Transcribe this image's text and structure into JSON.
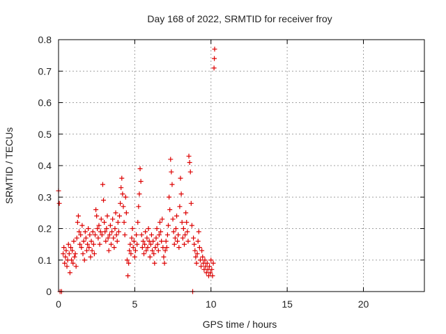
{
  "chart_data": {
    "type": "scatter",
    "title": "Day 168 of 2022, SRMTID for receiver froy",
    "xlabel": "GPS time / hours",
    "ylabel": "SRMTID / TECUs",
    "xlim": [
      0,
      24
    ],
    "ylim": [
      0,
      0.8
    ],
    "xticks": [
      0,
      5,
      10,
      15,
      20
    ],
    "xtick_labels": [
      "0",
      "5",
      "10",
      "15",
      "20"
    ],
    "yticks": [
      0,
      0.1,
      0.2,
      0.3,
      0.4,
      0.5,
      0.6,
      0.7,
      0.8
    ],
    "ytick_labels": [
      "0",
      "0.1",
      "0.2",
      "0.3",
      "0.4",
      "0.5",
      "0.6",
      "0.7",
      "0.8"
    ],
    "grid": true,
    "marker": "+",
    "marker_color": "#dd0000",
    "series": [
      {
        "name": "SRMTID",
        "points": [
          [
            0.0,
            0.32
          ],
          [
            0.05,
            0.28
          ],
          [
            0.1,
            0.0
          ],
          [
            0.2,
            0.0
          ],
          [
            0.3,
            0.12
          ],
          [
            0.35,
            0.14
          ],
          [
            0.4,
            0.09
          ],
          [
            0.45,
            0.11
          ],
          [
            0.5,
            0.13
          ],
          [
            0.55,
            0.08
          ],
          [
            0.6,
            0.1
          ],
          [
            0.65,
            0.15
          ],
          [
            0.7,
            0.12
          ],
          [
            0.75,
            0.06
          ],
          [
            0.8,
            0.14
          ],
          [
            0.85,
            0.1
          ],
          [
            0.9,
            0.13
          ],
          [
            0.95,
            0.09
          ],
          [
            1.0,
            0.16
          ],
          [
            1.05,
            0.11
          ],
          [
            1.1,
            0.12
          ],
          [
            1.15,
            0.08
          ],
          [
            1.2,
            0.17
          ],
          [
            1.25,
            0.22
          ],
          [
            1.3,
            0.24
          ],
          [
            1.35,
            0.19
          ],
          [
            1.4,
            0.15
          ],
          [
            1.45,
            0.18
          ],
          [
            1.5,
            0.14
          ],
          [
            1.55,
            0.21
          ],
          [
            1.6,
            0.12
          ],
          [
            1.65,
            0.16
          ],
          [
            1.7,
            0.1
          ],
          [
            1.75,
            0.19
          ],
          [
            1.8,
            0.17
          ],
          [
            1.85,
            0.13
          ],
          [
            1.9,
            0.15
          ],
          [
            1.95,
            0.2
          ],
          [
            2.0,
            0.14
          ],
          [
            2.05,
            0.18
          ],
          [
            2.1,
            0.11
          ],
          [
            2.15,
            0.16
          ],
          [
            2.2,
            0.13
          ],
          [
            2.25,
            0.19
          ],
          [
            2.3,
            0.15
          ],
          [
            2.35,
            0.12
          ],
          [
            2.4,
            0.18
          ],
          [
            2.45,
            0.26
          ],
          [
            2.5,
            0.24
          ],
          [
            2.55,
            0.2
          ],
          [
            2.6,
            0.17
          ],
          [
            2.65,
            0.21
          ],
          [
            2.7,
            0.15
          ],
          [
            2.75,
            0.19
          ],
          [
            2.8,
            0.23
          ],
          [
            2.85,
            0.18
          ],
          [
            2.9,
            0.34
          ],
          [
            2.95,
            0.29
          ],
          [
            3.0,
            0.22
          ],
          [
            3.05,
            0.19
          ],
          [
            3.1,
            0.16
          ],
          [
            3.15,
            0.2
          ],
          [
            3.2,
            0.24
          ],
          [
            3.25,
            0.17
          ],
          [
            3.3,
            0.13
          ],
          [
            3.35,
            0.18
          ],
          [
            3.4,
            0.21
          ],
          [
            3.45,
            0.15
          ],
          [
            3.5,
            0.19
          ],
          [
            3.55,
            0.23
          ],
          [
            3.6,
            0.17
          ],
          [
            3.65,
            0.14
          ],
          [
            3.7,
            0.2
          ],
          [
            3.75,
            0.25
          ],
          [
            3.8,
            0.18
          ],
          [
            3.85,
            0.16
          ],
          [
            3.9,
            0.22
          ],
          [
            3.95,
            0.19
          ],
          [
            4.0,
            0.24
          ],
          [
            4.05,
            0.28
          ],
          [
            4.1,
            0.33
          ],
          [
            4.15,
            0.36
          ],
          [
            4.2,
            0.31
          ],
          [
            4.25,
            0.27
          ],
          [
            4.3,
            0.22
          ],
          [
            4.35,
            0.18
          ],
          [
            4.4,
            0.3
          ],
          [
            4.45,
            0.25
          ],
          [
            4.5,
            0.1
          ],
          [
            4.55,
            0.05
          ],
          [
            4.6,
            0.09
          ],
          [
            4.65,
            0.13
          ],
          [
            4.7,
            0.15
          ],
          [
            4.75,
            0.12
          ],
          [
            4.8,
            0.17
          ],
          [
            4.85,
            0.2
          ],
          [
            4.9,
            0.14
          ],
          [
            4.95,
            0.16
          ],
          [
            5.0,
            0.11
          ],
          [
            5.05,
            0.13
          ],
          [
            5.1,
            0.18
          ],
          [
            5.15,
            0.15
          ],
          [
            5.2,
            0.22
          ],
          [
            5.25,
            0.27
          ],
          [
            5.3,
            0.31
          ],
          [
            5.35,
            0.39
          ],
          [
            5.4,
            0.35
          ],
          [
            5.45,
            0.18
          ],
          [
            5.5,
            0.14
          ],
          [
            5.55,
            0.16
          ],
          [
            5.6,
            0.12
          ],
          [
            5.65,
            0.15
          ],
          [
            5.7,
            0.19
          ],
          [
            5.75,
            0.13
          ],
          [
            5.8,
            0.17
          ],
          [
            5.85,
            0.14
          ],
          [
            5.9,
            0.2
          ],
          [
            5.95,
            0.16
          ],
          [
            6.0,
            0.11
          ],
          [
            6.05,
            0.15
          ],
          [
            6.1,
            0.18
          ],
          [
            6.15,
            0.13
          ],
          [
            6.2,
            0.16
          ],
          [
            6.25,
            0.12
          ],
          [
            6.3,
            0.09
          ],
          [
            6.35,
            0.14
          ],
          [
            6.4,
            0.17
          ],
          [
            6.45,
            0.2
          ],
          [
            6.5,
            0.15
          ],
          [
            6.55,
            0.13
          ],
          [
            6.6,
            0.18
          ],
          [
            6.65,
            0.22
          ],
          [
            6.7,
            0.19
          ],
          [
            6.75,
            0.16
          ],
          [
            6.8,
            0.23
          ],
          [
            6.85,
            0.14
          ],
          [
            6.9,
            0.11
          ],
          [
            6.95,
            0.09
          ],
          [
            7.0,
            0.13
          ],
          [
            7.05,
            0.16
          ],
          [
            7.1,
            0.14
          ],
          [
            7.15,
            0.18
          ],
          [
            7.2,
            0.21
          ],
          [
            7.25,
            0.3
          ],
          [
            7.3,
            0.26
          ],
          [
            7.35,
            0.42
          ],
          [
            7.4,
            0.38
          ],
          [
            7.45,
            0.34
          ],
          [
            7.5,
            0.23
          ],
          [
            7.55,
            0.19
          ],
          [
            7.6,
            0.15
          ],
          [
            7.65,
            0.17
          ],
          [
            7.7,
            0.2
          ],
          [
            7.75,
            0.24
          ],
          [
            7.8,
            0.16
          ],
          [
            7.85,
            0.18
          ],
          [
            7.9,
            0.14
          ],
          [
            7.95,
            0.27
          ],
          [
            8.0,
            0.36
          ],
          [
            8.05,
            0.31
          ],
          [
            8.1,
            0.22
          ],
          [
            8.15,
            0.17
          ],
          [
            8.2,
            0.2
          ],
          [
            8.25,
            0.15
          ],
          [
            8.3,
            0.18
          ],
          [
            8.35,
            0.25
          ],
          [
            8.4,
            0.22
          ],
          [
            8.45,
            0.19
          ],
          [
            8.5,
            0.16
          ],
          [
            8.55,
            0.43
          ],
          [
            8.6,
            0.41
          ],
          [
            8.65,
            0.38
          ],
          [
            8.7,
            0.28
          ],
          [
            8.75,
            0.21
          ],
          [
            8.8,
            0.0
          ],
          [
            8.85,
            0.17
          ],
          [
            8.9,
            0.15
          ],
          [
            8.95,
            0.13
          ],
          [
            9.0,
            0.11
          ],
          [
            9.05,
            0.09
          ],
          [
            9.1,
            0.12
          ],
          [
            9.15,
            0.16
          ],
          [
            9.2,
            0.19
          ],
          [
            9.25,
            0.14
          ],
          [
            9.3,
            0.1
          ],
          [
            9.35,
            0.08
          ],
          [
            9.4,
            0.13
          ],
          [
            9.45,
            0.11
          ],
          [
            9.5,
            0.09
          ],
          [
            9.55,
            0.07
          ],
          [
            9.6,
            0.1
          ],
          [
            9.65,
            0.08
          ],
          [
            9.7,
            0.06
          ],
          [
            9.75,
            0.09
          ],
          [
            9.8,
            0.07
          ],
          [
            9.85,
            0.05
          ],
          [
            9.9,
            0.08
          ],
          [
            9.95,
            0.06
          ],
          [
            10.0,
            0.1
          ],
          [
            10.05,
            0.07
          ],
          [
            10.1,
            0.05
          ],
          [
            10.15,
            0.09
          ],
          [
            10.2,
            0.71
          ],
          [
            10.22,
            0.74
          ],
          [
            10.24,
            0.77
          ]
        ]
      }
    ]
  }
}
